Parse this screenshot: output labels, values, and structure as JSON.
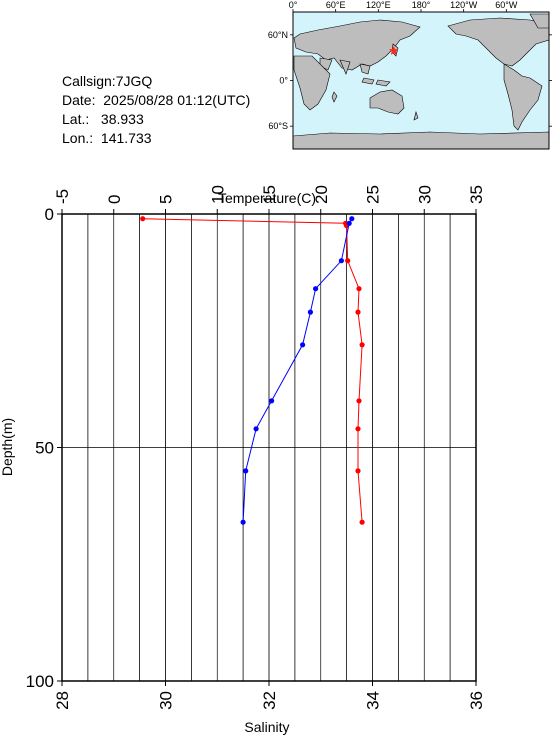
{
  "info": {
    "callsign": "Callsign:7JGQ",
    "date": "Date:  2025/08/28 01:12(UTC)",
    "lat": "Lat.:   38.933",
    "lon": "Lon.:  141.733"
  },
  "map": {
    "lon_labels": [
      "0°",
      "60°E",
      "120°E",
      "180°",
      "120°W",
      "60°W"
    ],
    "lat_labels": [
      "60°N",
      "0°",
      "60°S"
    ],
    "ocean_color": "#d4f4fb",
    "land_color": "#bdbdbd",
    "marker": {
      "lat": 38.933,
      "lon": 141.733,
      "color": "#ff2a1a",
      "icon": "star-icon"
    }
  },
  "chart_data": {
    "type": "line",
    "top_axis": {
      "label": "Temperature(C)",
      "range": [
        -5,
        35
      ],
      "ticks": [
        -5,
        0,
        5,
        10,
        15,
        20,
        25,
        30,
        35
      ]
    },
    "bottom_axis": {
      "label": "Salinity",
      "range": [
        28,
        36
      ],
      "ticks": [
        28,
        30,
        32,
        34,
        36
      ]
    },
    "y_axis": {
      "label": "Depth(m)",
      "range": [
        0,
        100
      ],
      "inverted": true,
      "ticks": [
        0,
        50,
        100
      ]
    },
    "grid": true,
    "series": [
      {
        "color": "#ff0000",
        "axis": "top",
        "points": [
          [
            2.8,
            1
          ],
          [
            22.4,
            2
          ],
          [
            22.5,
            2.5
          ],
          [
            22.6,
            10
          ],
          [
            23.7,
            16
          ],
          [
            23.6,
            21
          ],
          [
            24.0,
            28
          ],
          [
            23.7,
            40
          ],
          [
            23.6,
            46
          ],
          [
            23.6,
            55
          ],
          [
            24.0,
            66
          ]
        ]
      },
      {
        "color": "#0000ff",
        "axis": "bottom",
        "points": [
          [
            33.6,
            1
          ],
          [
            33.55,
            2
          ],
          [
            33.4,
            10
          ],
          [
            32.9,
            16
          ],
          [
            32.8,
            21
          ],
          [
            32.65,
            28
          ],
          [
            32.05,
            40
          ],
          [
            31.75,
            46
          ],
          [
            31.55,
            55
          ],
          [
            31.5,
            66
          ]
        ]
      }
    ]
  }
}
